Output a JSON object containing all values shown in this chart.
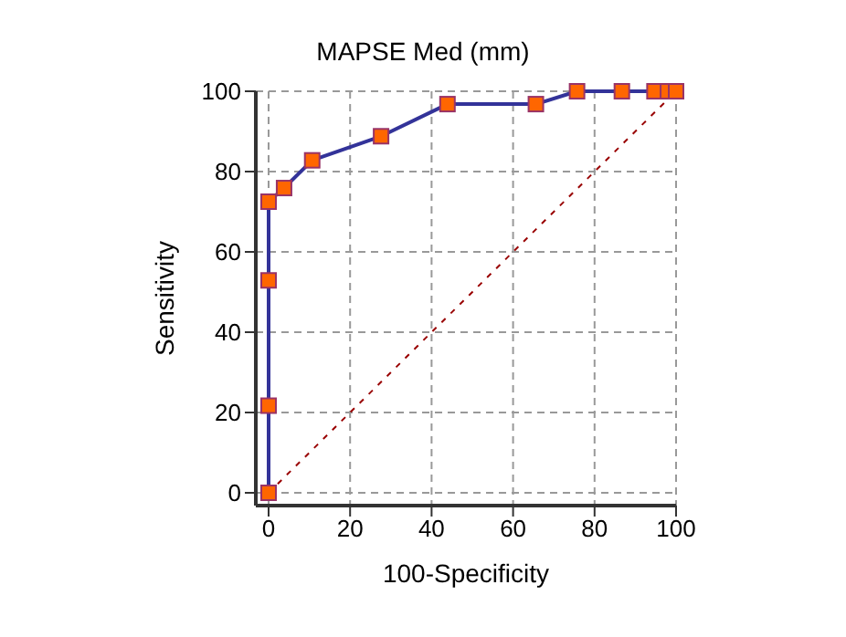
{
  "chart_data": {
    "type": "line",
    "title": "MAPSE Med (mm)",
    "xlabel": "100-Specificity",
    "ylabel": "Sensitivity",
    "xlim": [
      0,
      100
    ],
    "ylim": [
      0,
      100
    ],
    "xticks": [
      0,
      20,
      40,
      60,
      80,
      100
    ],
    "yticks": [
      0,
      20,
      40,
      60,
      80,
      100
    ],
    "grid": true,
    "series": [
      {
        "color": "#333399",
        "marker": "square",
        "line_style": "solid",
        "x": [
          0,
          0,
          0,
          0,
          3.8,
          10.7,
          27.6,
          43.9,
          65.6,
          75.7,
          86.7,
          94.7,
          98,
          100
        ],
        "values": [
          0,
          21.7,
          52.9,
          72.5,
          75.9,
          82.8,
          88.8,
          96.8,
          96.8,
          100,
          100,
          100,
          100,
          100
        ]
      },
      {
        "color": "#990000",
        "marker": "none",
        "line_style": "dashed",
        "x": [
          0,
          100
        ],
        "values": [
          0,
          100
        ]
      }
    ]
  }
}
